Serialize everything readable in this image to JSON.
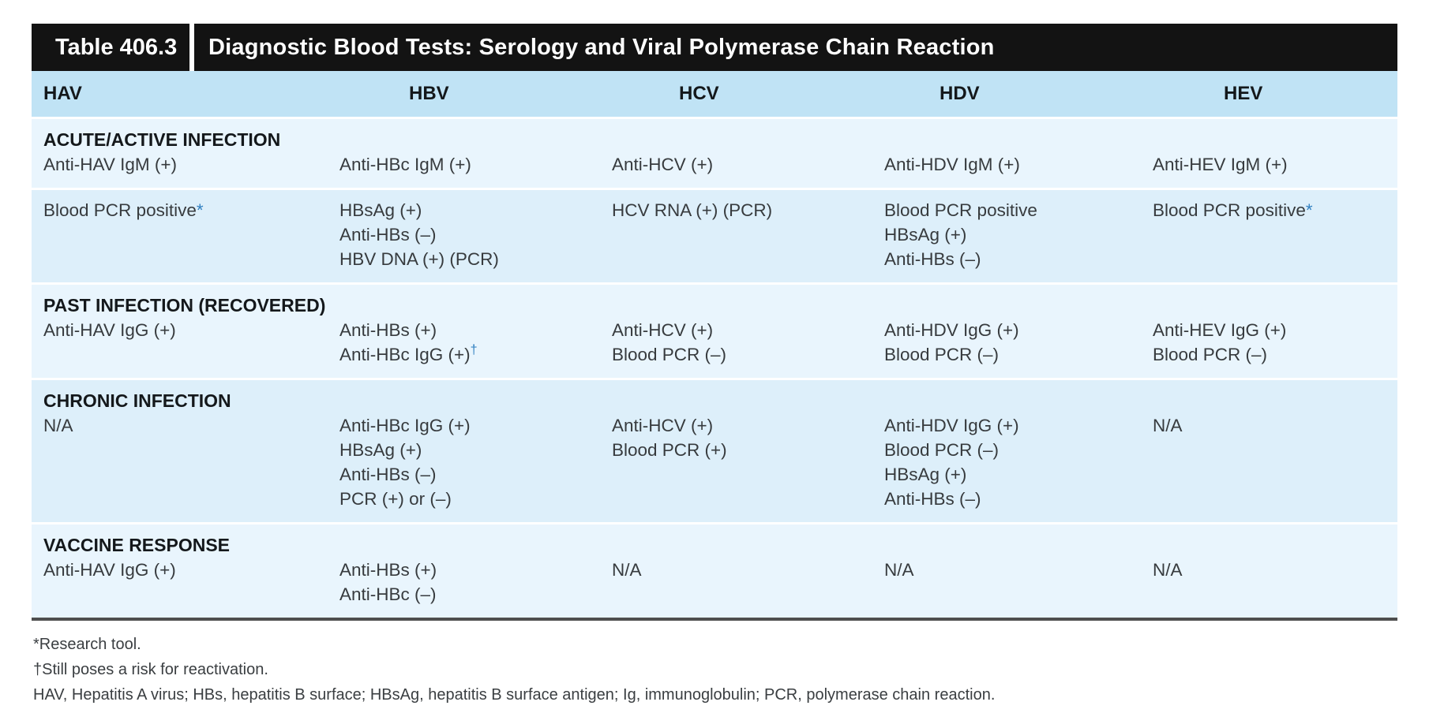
{
  "colors": {
    "bar_bg": "#131313",
    "bar_text": "#ffffff",
    "header_bg": "#c0e3f5",
    "band_light": "#e9f5fd",
    "band_dark": "#ddeffa",
    "text": "#373b3e",
    "heading_text": "#14181b",
    "marker_blue": "#2f7fc0",
    "bottom_border": "#4e4e4e"
  },
  "table": {
    "label": "Table 406.3",
    "title": "Diagnostic Blood Tests: Serology and Viral Polymerase Chain Reaction",
    "columns": [
      "HAV",
      "HBV",
      "HCV",
      "HDV",
      "HEV"
    ],
    "bands": [
      {
        "section": "ACUTE/ACTIVE INFECTION",
        "cells": [
          [
            "Anti-HAV IgM (+)"
          ],
          [
            "Anti-HBc IgM (+)"
          ],
          [
            "Anti-HCV (+)"
          ],
          [
            "Anti-HDV IgM (+)"
          ],
          [
            "Anti-HEV IgM (+)"
          ]
        ]
      },
      {
        "section": "",
        "cells": [
          [
            "Blood PCR positive*"
          ],
          [
            "HBsAg (+)",
            "Anti-HBs (–)",
            "HBV DNA (+) (PCR)"
          ],
          [
            "HCV RNA (+) (PCR)"
          ],
          [
            "Blood PCR positive",
            "HBsAg (+)",
            "Anti-HBs (–)"
          ],
          [
            "Blood PCR positive*"
          ]
        ]
      },
      {
        "section": "PAST INFECTION (RECOVERED)",
        "cells": [
          [
            "Anti-HAV IgG (+)"
          ],
          [
            "Anti-HBs (+)",
            "Anti-HBc IgG (+)†"
          ],
          [
            "Anti-HCV (+)",
            "Blood PCR (–)"
          ],
          [
            "Anti-HDV IgG (+)",
            "Blood PCR (–)"
          ],
          [
            "Anti-HEV IgG (+)",
            "Blood PCR (–)"
          ]
        ]
      },
      {
        "section": "CHRONIC INFECTION",
        "cells": [
          [
            "N/A"
          ],
          [
            "Anti-HBc IgG (+)",
            "HBsAg (+)",
            "Anti-HBs (–)",
            "PCR (+) or (–)"
          ],
          [
            "Anti-HCV (+)",
            "Blood PCR (+)"
          ],
          [
            "Anti-HDV IgG (+)",
            "Blood PCR (–)",
            "HBsAg (+)",
            "Anti-HBs (–)"
          ],
          [
            "N/A"
          ]
        ]
      },
      {
        "section": "VACCINE RESPONSE",
        "cells": [
          [
            "Anti-HAV IgG (+)"
          ],
          [
            "Anti-HBs (+)",
            "Anti-HBc (–)"
          ],
          [
            "N/A"
          ],
          [
            "N/A"
          ],
          [
            "N/A"
          ]
        ]
      }
    ],
    "footnotes": [
      "*Research tool.",
      "†Still poses a risk for reactivation.",
      "HAV, Hepatitis A virus; HBs, hepatitis B surface; HBsAg, hepatitis B surface antigen; Ig, immunoglobulin; PCR, polymerase chain reaction."
    ]
  }
}
